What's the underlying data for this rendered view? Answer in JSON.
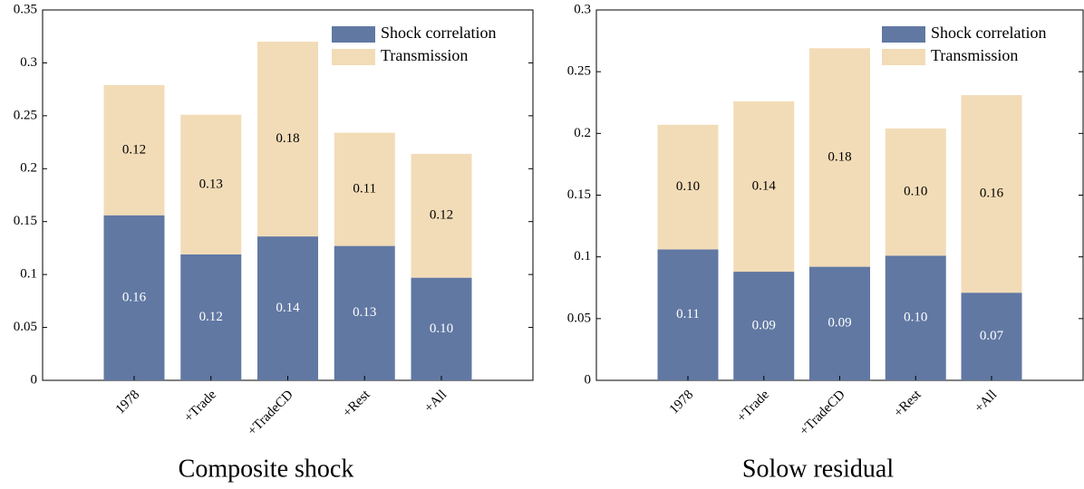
{
  "chart_data": [
    {
      "type": "stacked-bar",
      "title": "Composite shock",
      "categories": [
        "1978",
        "+Trade",
        "+TradeCD",
        "+Rest",
        "+All"
      ],
      "series": [
        {
          "name": "Shock correlation",
          "color": "#6178a3",
          "values": [
            0.156,
            0.119,
            0.136,
            0.127,
            0.097
          ],
          "value_labels": [
            "0.16",
            "0.12",
            "0.14",
            "0.13",
            "0.10"
          ]
        },
        {
          "name": "Transmission",
          "color": "#f2dcb7",
          "values": [
            0.123,
            0.132,
            0.184,
            0.107,
            0.117
          ],
          "value_labels": [
            "0.12",
            "0.13",
            "0.18",
            "0.11",
            "0.12"
          ]
        }
      ],
      "ylim": [
        0,
        0.35
      ],
      "yticks": [
        0,
        0.05,
        0.1,
        0.15,
        0.2,
        0.25,
        0.3,
        0.35
      ],
      "legend": "upper-right"
    },
    {
      "type": "stacked-bar",
      "title": "Solow residual",
      "categories": [
        "1978",
        "+Trade",
        "+TradeCD",
        "+Rest",
        "+All"
      ],
      "series": [
        {
          "name": "Shock correlation",
          "color": "#6178a3",
          "values": [
            0.106,
            0.088,
            0.092,
            0.101,
            0.071
          ],
          "value_labels": [
            "0.11",
            "0.09",
            "0.09",
            "0.10",
            "0.07"
          ]
        },
        {
          "name": "Transmission",
          "color": "#f2dcb7",
          "values": [
            0.101,
            0.138,
            0.177,
            0.103,
            0.16
          ],
          "value_labels": [
            "0.10",
            "0.14",
            "0.18",
            "0.10",
            "0.16"
          ]
        }
      ],
      "ylim": [
        0,
        0.3
      ],
      "yticks": [
        0,
        0.05,
        0.1,
        0.15,
        0.2,
        0.25,
        0.3
      ],
      "legend": "upper-right"
    }
  ]
}
